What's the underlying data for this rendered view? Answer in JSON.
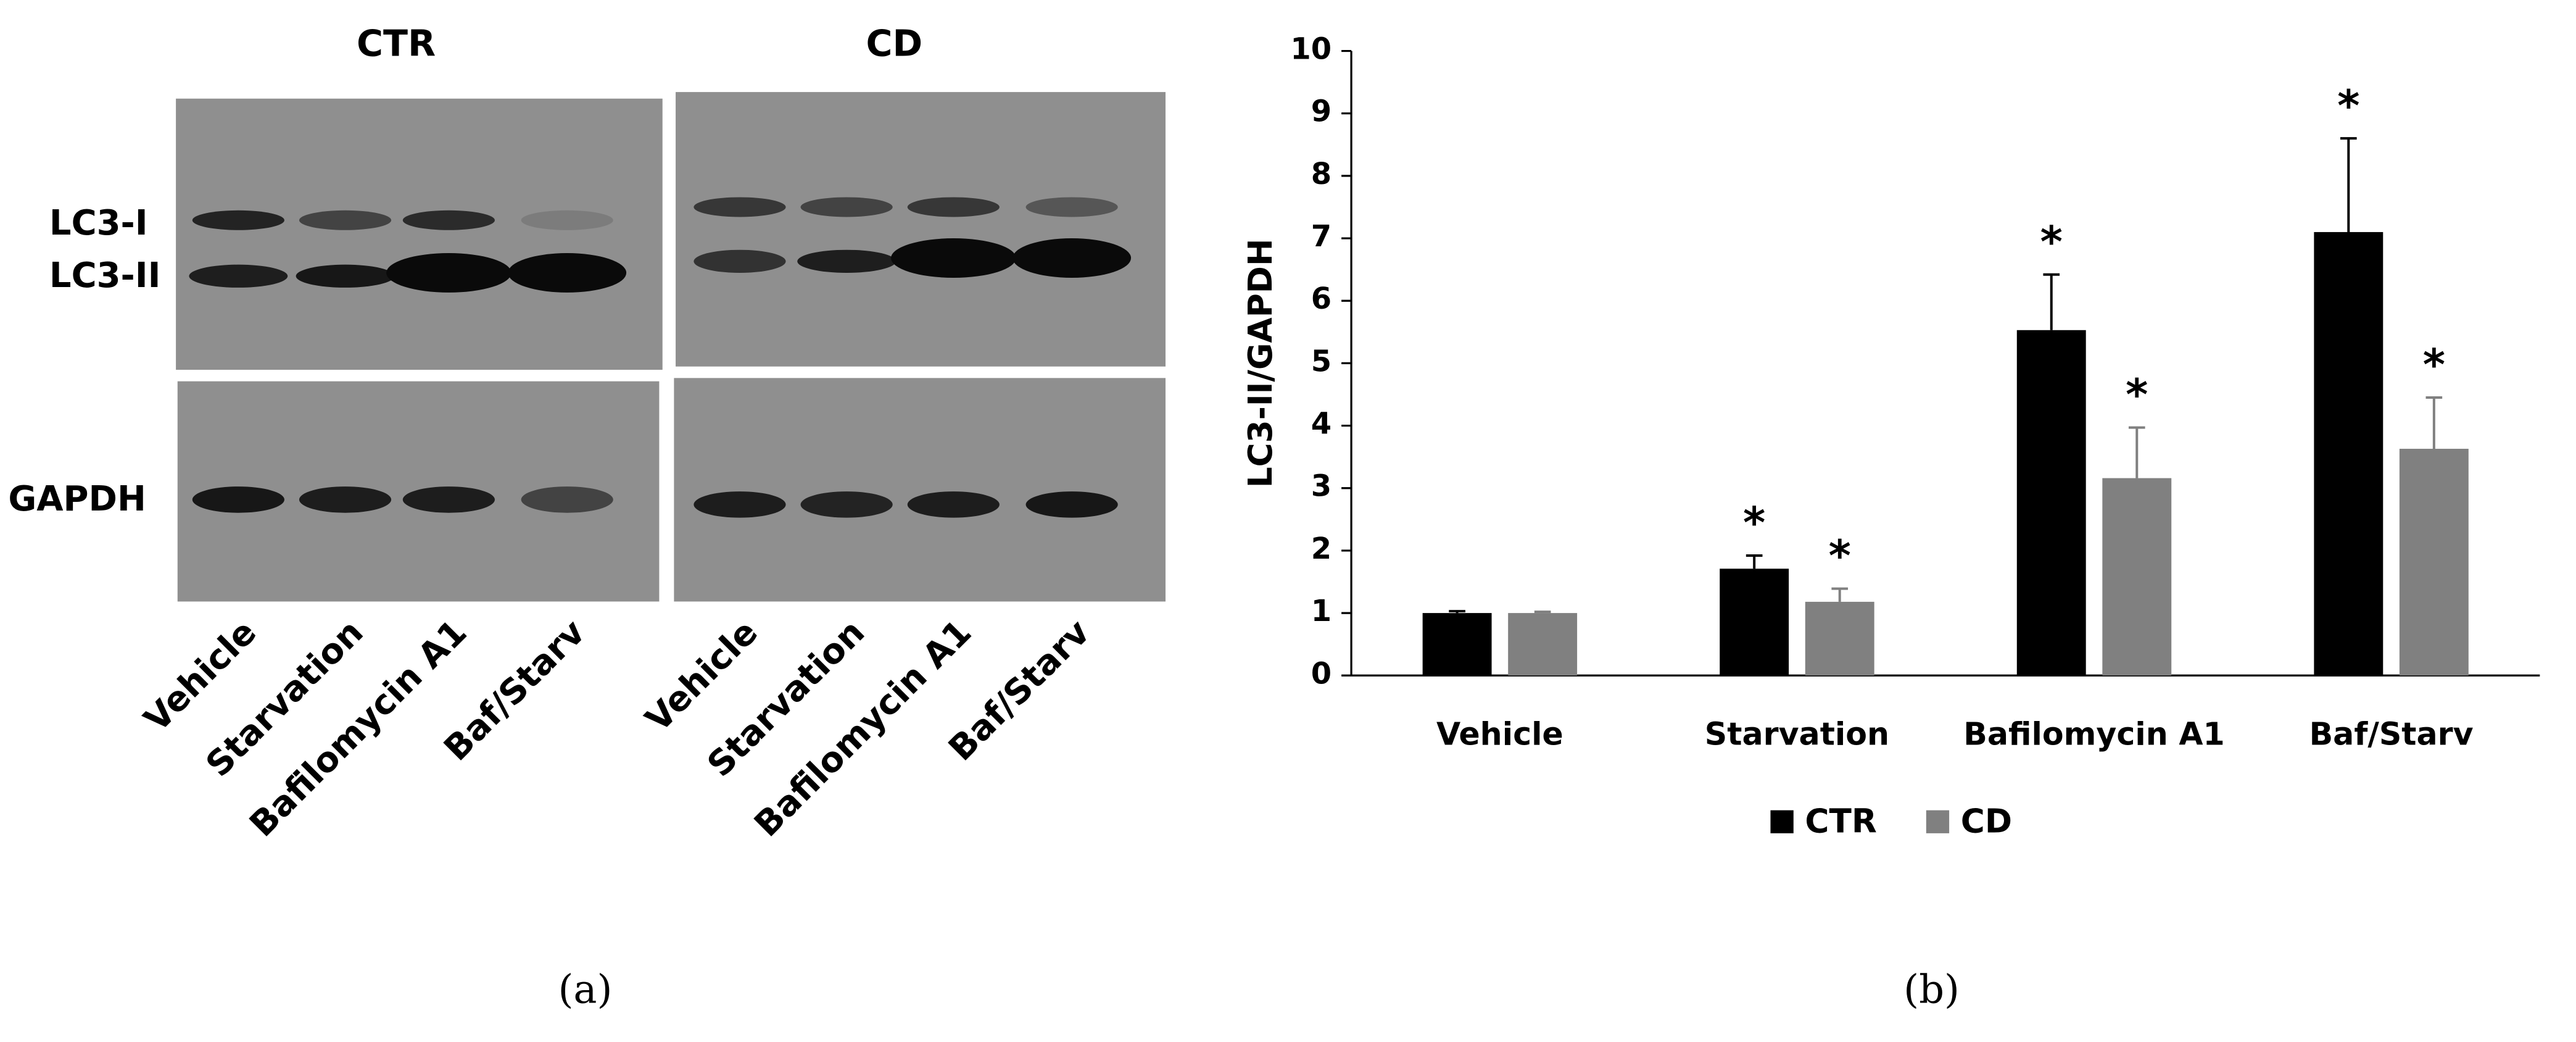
{
  "blot": {
    "groups": [
      {
        "name": "CTR",
        "lanes": [
          "Vehicle",
          "Starvation",
          "Bafilomycin A1",
          "Baf/Starv"
        ]
      },
      {
        "name": "CD",
        "lanes": [
          "Vehicle",
          "Starvation",
          "Bafilomycin A1",
          "Baf/Starv"
        ]
      }
    ],
    "bands": [
      "LC3-I",
      "LC3-II",
      "GAPDH"
    ],
    "panel_label": "(a)"
  },
  "chart_data": {
    "type": "bar",
    "panel_label": "(b)",
    "y_label": "LC3-II/GAPDH",
    "categories": [
      "Vehicle",
      "Starvation",
      "Bafilomycin A1",
      "Baf/Starv"
    ],
    "ylim": [
      0,
      10
    ],
    "yticks": [
      0,
      1,
      2,
      3,
      4,
      5,
      6,
      7,
      8,
      9,
      10
    ],
    "legend": "bottom",
    "series": [
      {
        "name": "CTR",
        "color": "#000000",
        "values": [
          1.0,
          1.71,
          5.53,
          7.1
        ],
        "errors": [
          0.03,
          0.21,
          0.89,
          1.5
        ],
        "annotations": [
          null,
          "*",
          "*",
          "*"
        ]
      },
      {
        "name": "CD",
        "color": "#808080",
        "values": [
          1.0,
          1.18,
          3.16,
          3.63
        ],
        "errors": [
          0.02,
          0.21,
          0.81,
          0.82
        ],
        "annotations": [
          null,
          "*",
          "*",
          "*"
        ]
      }
    ]
  }
}
